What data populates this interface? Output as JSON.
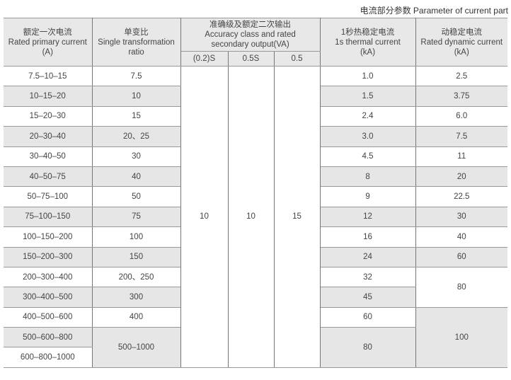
{
  "caption": "电流部分参数 Parameter of current part",
  "header": {
    "primary": [
      "额定一次电流",
      "Rated primary current",
      "(A)"
    ],
    "ratio": [
      "单变比",
      "Single transformation",
      "ratio"
    ],
    "accuracy": [
      "准确级及额定二次输出",
      "Accuracy class and rated",
      "secondary output(VA)"
    ],
    "accuracy_classes": [
      "(0.2)S",
      "0.5S",
      "0.5"
    ],
    "thermal": [
      "1秒热稳定电流",
      "1s thermal current",
      "(kA)"
    ],
    "dynamic": [
      "动稳定电流",
      "Rated dynamic current",
      "(kA)"
    ]
  },
  "rows": [
    {
      "primary": "7.5–10–15",
      "ratio": "7.5",
      "thermal": "1.0",
      "dynamic": "2.5"
    },
    {
      "primary": "10–15–20",
      "ratio": "10",
      "thermal": "1.5",
      "dynamic": "3.75"
    },
    {
      "primary": "15–20–30",
      "ratio": "15",
      "thermal": "2.4",
      "dynamic": "6.0"
    },
    {
      "primary": "20–30–40",
      "ratio": "20、25",
      "thermal": "3.0",
      "dynamic": "7.5"
    },
    {
      "primary": "30–40–50",
      "ratio": "30",
      "thermal": "4.5",
      "dynamic": "11"
    },
    {
      "primary": "40–50–75",
      "ratio": "40",
      "thermal": "8",
      "dynamic": "20"
    },
    {
      "primary": "50–75–100",
      "ratio": "50",
      "thermal": "9",
      "dynamic": "22.5"
    },
    {
      "primary": "75–100–150",
      "ratio": "75",
      "thermal": "12",
      "dynamic": "30"
    },
    {
      "primary": "100–150–200",
      "ratio": "100",
      "thermal": "16",
      "dynamic": "40"
    },
    {
      "primary": "150–200–300",
      "ratio": "150",
      "thermal": "24",
      "dynamic": "60"
    },
    {
      "primary": "200–300–400",
      "ratio": "200、250",
      "thermal": "32",
      "dynamic": "80"
    },
    {
      "primary": "300–400–500",
      "ratio": "300",
      "thermal": "45"
    },
    {
      "primary": "400–500–600",
      "ratio": "400",
      "thermal": "60",
      "dynamic": "100"
    },
    {
      "primary": "500–600–800",
      "ratio": "500–1000",
      "thermal": "80"
    },
    {
      "primary": "600–800–1000"
    }
  ],
  "accuracy_values": [
    "10",
    "10",
    "15"
  ],
  "colors": {
    "shade": "#e6e6e6",
    "header": "#e8e8e8"
  }
}
